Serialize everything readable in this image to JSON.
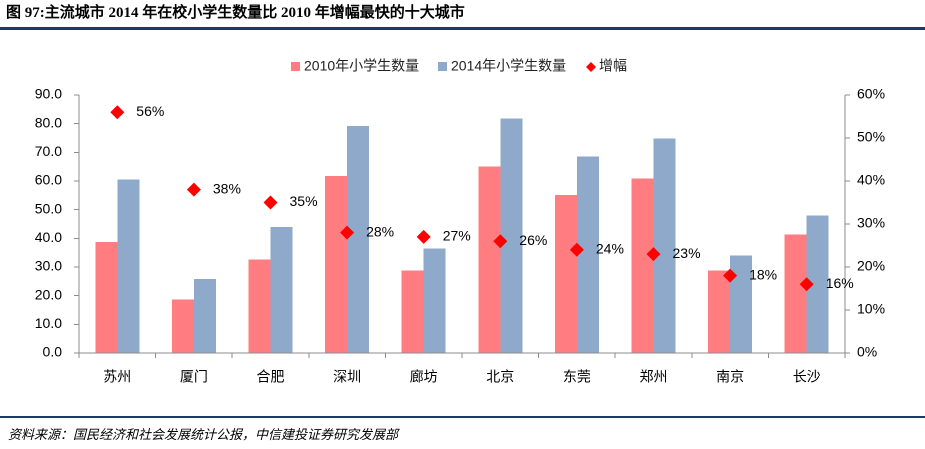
{
  "source": "资料来源：国民经济和社会发展统计公报，中信建投证券研究发展部",
  "colors": {
    "rule": "#1B3A6B"
  },
  "chart_data": {
    "type": "bar",
    "title": "图 97:主流城市 2014 年在校小学生数量比 2010 年增幅最快的十大城市",
    "categories": [
      "苏州",
      "厦门",
      "合肥",
      "深圳",
      "廊坊",
      "北京",
      "东莞",
      "郑州",
      "南京",
      "长沙"
    ],
    "series": [
      {
        "name": "2010年小学生数量",
        "type": "bar",
        "axis": "left",
        "color": "#FF7C80",
        "values": [
          38.8,
          18.7,
          32.6,
          61.8,
          28.7,
          65.0,
          55.2,
          60.8,
          28.8,
          41.3
        ]
      },
      {
        "name": "2014年小学生数量",
        "type": "bar",
        "axis": "left",
        "color": "#8EA9C9",
        "values": [
          60.5,
          25.8,
          44.0,
          79.2,
          36.4,
          81.8,
          68.6,
          74.8,
          34.0,
          47.9
        ]
      },
      {
        "name": "增幅",
        "type": "scatter",
        "axis": "right",
        "marker": "diamond",
        "color": "#FF0000",
        "values": [
          56,
          38,
          35,
          28,
          27,
          26,
          24,
          23,
          18,
          16
        ],
        "labels": [
          "56%",
          "38%",
          "35%",
          "28%",
          "27%",
          "26%",
          "24%",
          "23%",
          "18%",
          "16%"
        ]
      }
    ],
    "ylim": [
      0,
      90
    ],
    "y_ticks": [
      "0.0",
      "10.0",
      "20.0",
      "30.0",
      "40.0",
      "50.0",
      "60.0",
      "70.0",
      "80.0",
      "90.0"
    ],
    "y2lim": [
      0,
      60
    ],
    "y2_ticks": [
      "0%",
      "10%",
      "20%",
      "30%",
      "40%",
      "50%",
      "60%"
    ],
    "legend": "top-center",
    "grid": false
  }
}
